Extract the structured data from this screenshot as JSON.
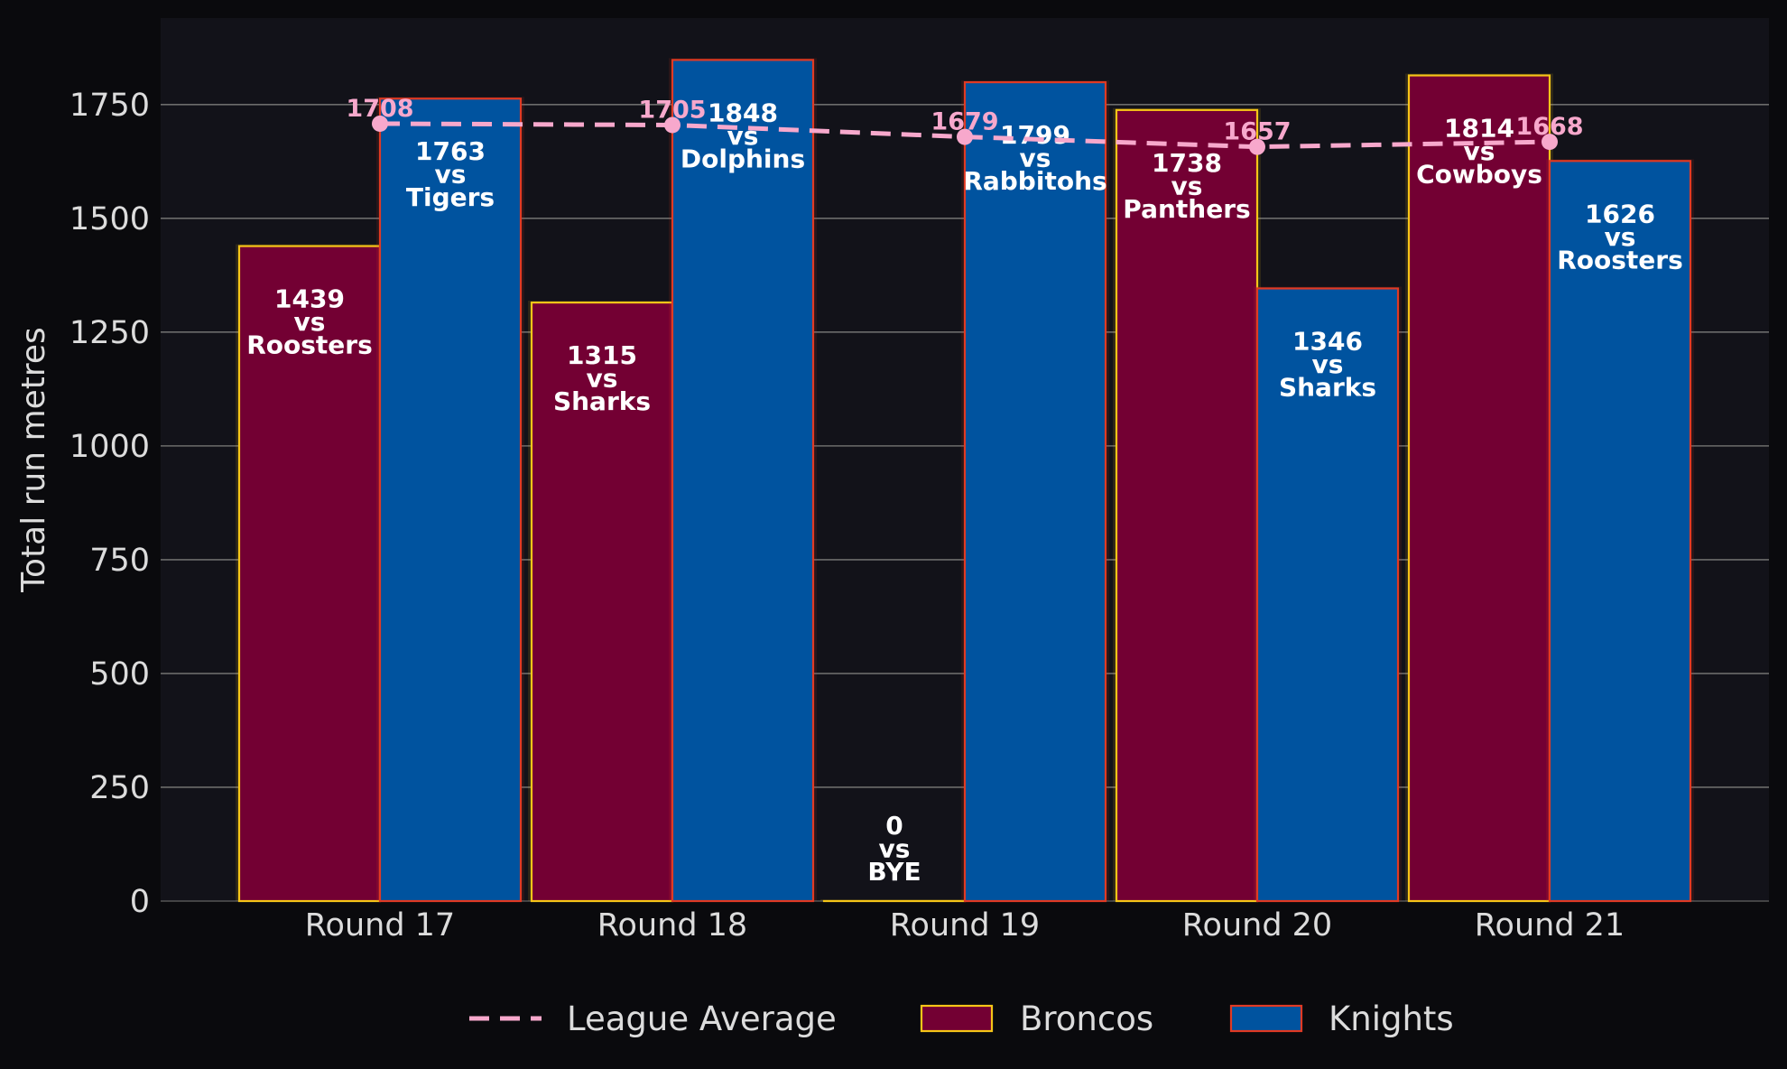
{
  "chart_data": {
    "type": "bar",
    "title": "",
    "xlabel": "",
    "ylabel": "Total run metres",
    "ylim": [
      0,
      1940
    ],
    "yticks": [
      0,
      250,
      500,
      750,
      1000,
      1250,
      1500,
      1750
    ],
    "categories": [
      "Round 17",
      "Round 18",
      "Round 19",
      "Round 20",
      "Round 21"
    ],
    "series": [
      {
        "name": "Broncos",
        "kind": "bar",
        "color": "#730033",
        "edge_color": "#f5c518",
        "values": [
          1439,
          1315,
          0,
          1738,
          1814
        ],
        "opponents": [
          "Roosters",
          "Sharks",
          "BYE",
          "Panthers",
          "Cowboys"
        ]
      },
      {
        "name": "Knights",
        "kind": "bar",
        "color": "#00539f",
        "edge_color": "#e03a24",
        "values": [
          1763,
          1848,
          1799,
          1346,
          1626
        ],
        "opponents": [
          "Tigers",
          "Dolphins",
          "Rabbitohs",
          "Sharks",
          "Roosters"
        ]
      },
      {
        "name": "League Average",
        "kind": "line",
        "style": "dashed",
        "color": "#f7a8cc",
        "values": [
          1708,
          1705,
          1679,
          1657,
          1668
        ]
      }
    ],
    "vs_word": "vs",
    "grid": "horizontal",
    "legend_position": "bottom-center",
    "colors": {
      "figure_bg": "#0a0a0d",
      "plot_bg": "#121219",
      "grid": "#6b6b6b",
      "text": "#dcdcdc"
    }
  }
}
